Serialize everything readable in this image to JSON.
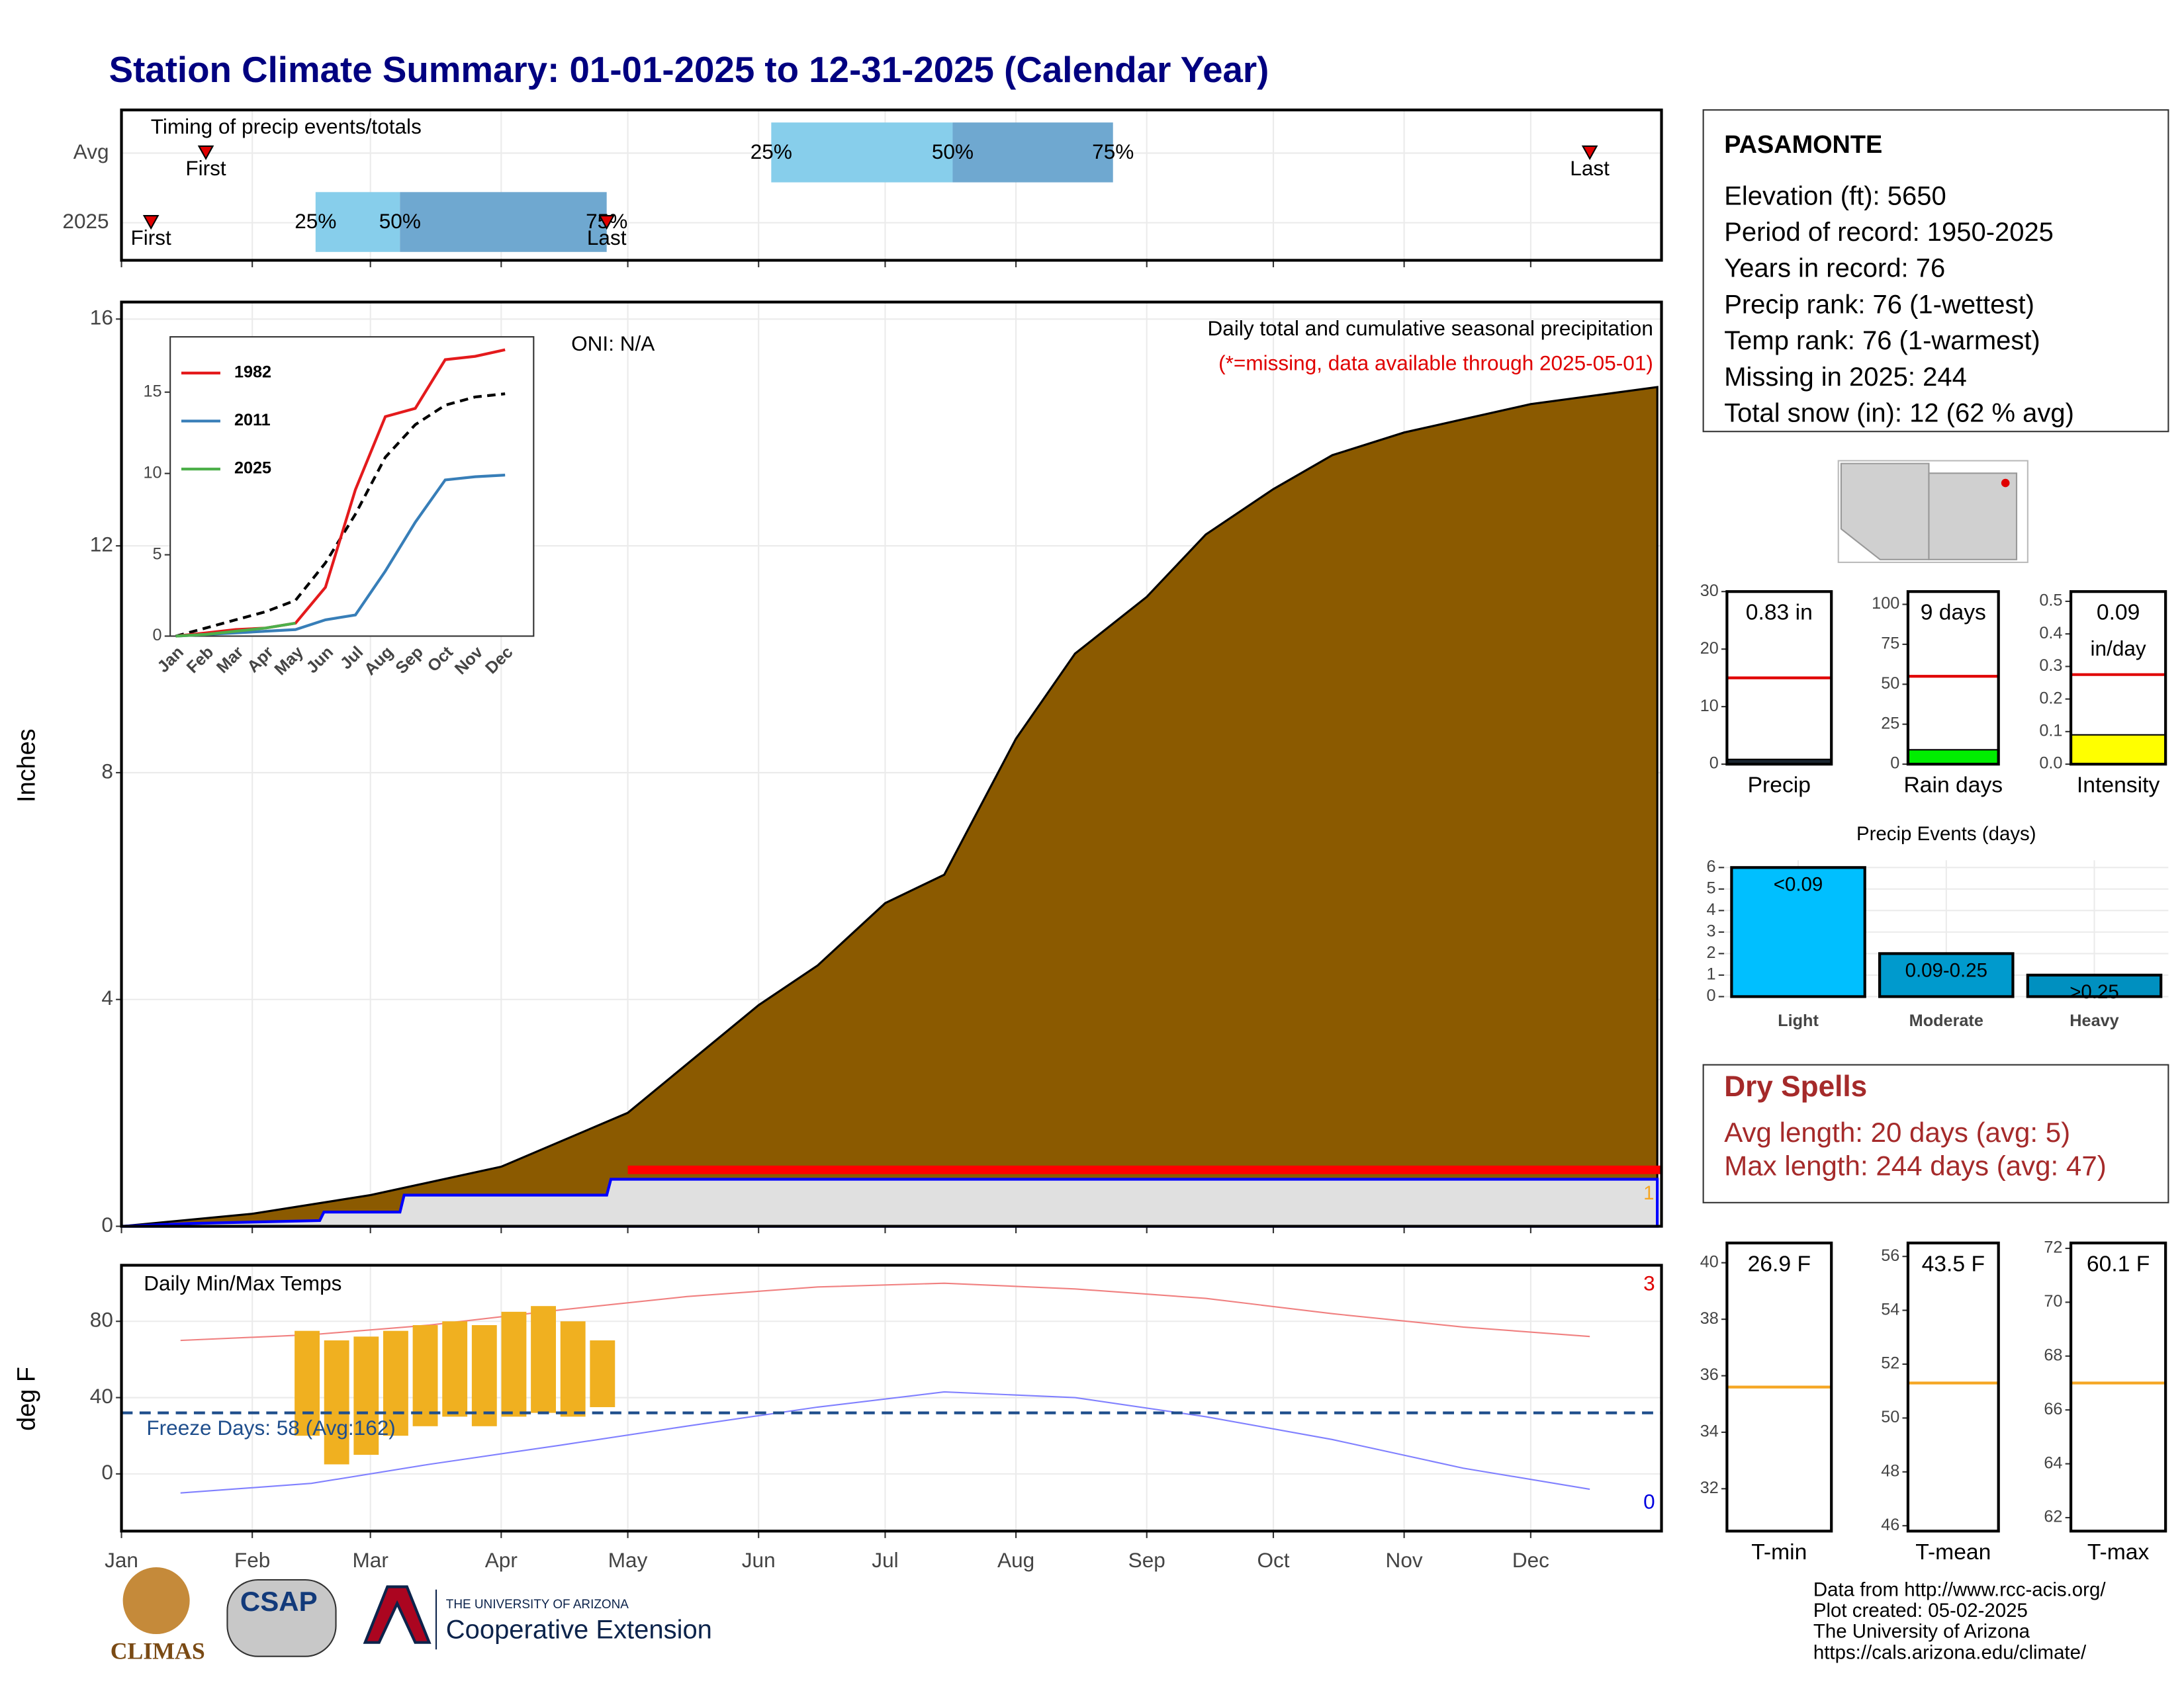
{
  "title": "Station Climate Summary: 01-01-2025 to 12-31-2025 (Calendar Year)",
  "chart_data": [
    {
      "type": "timing",
      "title": "Timing of precip events/totals",
      "categories": [
        "Avg",
        "2025"
      ],
      "xlim": [
        1,
        366
      ],
      "markers": [
        {
          "label": "First",
          "values": [
            21,
            8
          ]
        },
        {
          "label": "Last",
          "values": [
            349,
            116
          ]
        }
      ],
      "quantiles": [
        {
          "label": "25%",
          "values": [
            155,
            47
          ]
        },
        {
          "label": "50%",
          "values": [
            198,
            67
          ]
        },
        {
          "label": "75%",
          "values": [
            236,
            116
          ]
        }
      ],
      "colors": [
        "#87ceeb",
        "#6fa8d0"
      ],
      "marker_color": "#e00000"
    },
    {
      "type": "area",
      "title": "Daily total and cumulative seasonal precipitation",
      "subtitle": "(*=missing, data available through 2025-05-01)",
      "annotation": "ONI: N/A",
      "count_label": "1",
      "ylabel": "Inches",
      "xlim": [
        1,
        366
      ],
      "ylim": [
        0,
        16.3
      ],
      "yticks": [
        0,
        4,
        8,
        12,
        16
      ],
      "grid": true,
      "series": [
        {
          "color": "#8b5a00",
          "x": [
            1,
            32,
            60,
            91,
            121,
            152,
            166,
            182,
            196,
            213,
            227,
            244,
            258,
            274,
            288,
            305,
            335,
            365
          ],
          "values": [
            0,
            0.22,
            0.55,
            1.05,
            2.0,
            3.9,
            4.6,
            5.7,
            6.2,
            8.6,
            10.1,
            11.1,
            12.2,
            13.0,
            13.6,
            14.0,
            14.5,
            14.8
          ]
        },
        {
          "color": "#0000ff",
          "x": [
            1,
            17,
            48,
            49,
            67,
            68,
            116,
            117,
            365
          ],
          "values": [
            0,
            0.05,
            0.1,
            0.25,
            0.25,
            0.55,
            0.55,
            0.83,
            0.83
          ]
        }
      ],
      "missing_x": [
        121,
        366
      ],
      "missing_color": "#ff0000"
    },
    {
      "type": "line",
      "categories": [
        "Jan",
        "Feb",
        "Mar",
        "Apr",
        "May",
        "Jun",
        "Jul",
        "Aug",
        "Sep",
        "Oct",
        "Nov",
        "Dec"
      ],
      "ylim": [
        0,
        18.4
      ],
      "yticks": [
        0,
        5,
        10,
        15
      ],
      "series": [
        {
          "name": "1982",
          "color": "#e41a1c",
          "values": [
            0,
            0.2,
            0.4,
            0.5,
            0.8,
            3,
            9,
            13.5,
            14,
            17,
            17.2,
            17.6
          ]
        },
        {
          "name": "2011",
          "color": "#377eb8",
          "values": [
            0,
            0.1,
            0.2,
            0.3,
            0.4,
            1,
            1.3,
            4,
            7,
            9.6,
            9.8,
            9.9
          ]
        },
        {
          "name": "2025",
          "color": "#4daf4a",
          "values": [
            0,
            0.1,
            0.3,
            0.5,
            0.8,
            null,
            null,
            null,
            null,
            null,
            null,
            null
          ]
        }
      ],
      "mean_values": [
        0,
        0.5,
        1,
        1.5,
        2.2,
        4.5,
        7.5,
        11,
        13,
        14.2,
        14.7,
        14.9
      ]
    },
    {
      "type": "gauge",
      "title": "Precip",
      "value": 0.83,
      "value_label": "0.83 in",
      "average": 15,
      "ylim": [
        0,
        30
      ],
      "yticks": [
        0,
        10,
        20,
        30
      ],
      "color": "#1a2530",
      "avg_color": "#e00000"
    },
    {
      "type": "gauge",
      "title": "Rain days",
      "value": 9,
      "value_label": "9 days",
      "average": 55,
      "ylim": [
        0,
        108
      ],
      "yticks": [
        0,
        25,
        50,
        75,
        100
      ],
      "color": "#00ee00",
      "avg_color": "#e00000"
    },
    {
      "type": "temp",
      "title": "Daily Min/Max Temps",
      "ylabel": "deg F",
      "xlim": [
        1,
        366
      ],
      "ylim": [
        -30,
        109.4
      ],
      "yticks": [
        0,
        40,
        80
      ],
      "xticks": [
        {
          "value": 1,
          "label": "Jan"
        },
        {
          "value": 32,
          "label": "Feb"
        },
        {
          "value": 60,
          "label": "Mar"
        },
        {
          "value": 91,
          "label": "Apr"
        },
        {
          "value": 121,
          "label": "May"
        },
        {
          "value": 152,
          "label": "Jun"
        },
        {
          "value": 182,
          "label": "Jul"
        },
        {
          "value": 213,
          "label": "Aug"
        },
        {
          "value": 244,
          "label": "Sep"
        },
        {
          "value": 274,
          "label": "Oct"
        },
        {
          "value": 305,
          "label": "Nov"
        },
        {
          "value": 335,
          "label": "Dec"
        }
      ],
      "x": [
        15,
        46,
        74,
        105,
        135,
        166,
        196,
        227,
        258,
        288,
        319,
        349
      ],
      "series": [
        {
          "color": "#f08080",
          "values": [
            70,
            73,
            78,
            86,
            93,
            98,
            100,
            97,
            92,
            84,
            77,
            72
          ]
        },
        {
          "color": "#8080ff",
          "values": [
            -10,
            -5,
            5,
            15,
            25,
            35,
            43,
            40,
            30,
            18,
            3,
            -8
          ]
        }
      ],
      "bars": {
        "color": "#f0b020",
        "x": [
          45,
          52,
          59,
          66,
          73,
          80,
          87,
          94,
          101,
          108,
          115
        ],
        "lows": [
          20,
          5,
          10,
          20,
          25,
          30,
          25,
          30,
          32,
          30,
          35
        ],
        "highs": [
          75,
          70,
          72,
          75,
          78,
          80,
          78,
          85,
          88,
          80,
          70
        ]
      },
      "freeze_line": 32,
      "freeze_label": "Freeze Days: 58 (Avg:162)",
      "high_count": "3",
      "low_count": "0"
    },
    {
      "type": "gauge",
      "title": "Intensity",
      "value": 0.09,
      "value_label": "0.09",
      "unit": "in/day",
      "average": 0.275,
      "ylim": [
        0,
        0.53
      ],
      "yticks": [
        {
          "value": 0,
          "label": "0.0"
        },
        0.1,
        0.2,
        0.3,
        0.4,
        0.5
      ],
      "color": "#ffff00",
      "avg_color": "#e00000"
    },
    {
      "type": "bar",
      "title": "Precip Events (days)",
      "categories": [
        "Light",
        "Moderate",
        "Heavy"
      ],
      "values": [
        6,
        2,
        1
      ],
      "value_labels": [
        "<0.09",
        "0.09-0.25",
        ">0.25"
      ],
      "colors": [
        "#00bfff",
        "#009acd",
        "#0090c0"
      ],
      "ylim": [
        0,
        6.34
      ],
      "yticks": [
        0,
        1,
        2,
        3,
        4,
        5,
        6
      ]
    },
    {
      "type": "gauge",
      "title": "T-min",
      "value": 26.9,
      "value_label": "26.9 F",
      "average": 35.6,
      "ylim": [
        30.5,
        40.7
      ],
      "yticks": [
        32,
        34,
        36,
        38,
        40
      ],
      "color": "#9999ff",
      "avg_color": "#f5a623"
    },
    {
      "type": "gauge",
      "title": "T-mean",
      "value": 43.5,
      "value_label": "43.5 F",
      "average": 51.3,
      "ylim": [
        45.8,
        56.5
      ],
      "yticks": [
        46,
        48,
        50,
        52,
        54,
        56
      ],
      "color": "#9999ff",
      "avg_color": "#f5a623"
    },
    {
      "type": "gauge",
      "title": "T-max",
      "value": 60.1,
      "value_label": "60.1 F",
      "average": 67.0,
      "ylim": [
        61.5,
        72.2
      ],
      "yticks": [
        62,
        64,
        66,
        68,
        70,
        72
      ],
      "color": "#9999ff",
      "avg_color": "#f5a623"
    }
  ],
  "station": {
    "name": "PASAMONTE",
    "lines": [
      "Elevation (ft): 5650",
      "Period of record: 1950-2025",
      "Years in record: 76",
      "Precip rank: 76 (1-wettest)",
      "Temp rank: 76 (1-warmest)",
      "Missing in 2025: 244",
      "Total snow (in): 12 (62 % avg)"
    ]
  },
  "dry_spells": {
    "title": "Dry Spells",
    "lines": [
      "Avg length: 20 days (avg: 5)",
      "Max length: 244 days (avg: 47)"
    ]
  },
  "footer": [
    "Data from http://www.rcc-acis.org/",
    "Plot created: 05-02-2025",
    "The University of Arizona",
    "https://cals.arizona.edu/climate/"
  ],
  "logos": {
    "climas": "CLIMAS",
    "csap": "CSAP",
    "university": "THE UNIVERSITY OF ARIZONA",
    "extension": "Cooperative Extension"
  }
}
